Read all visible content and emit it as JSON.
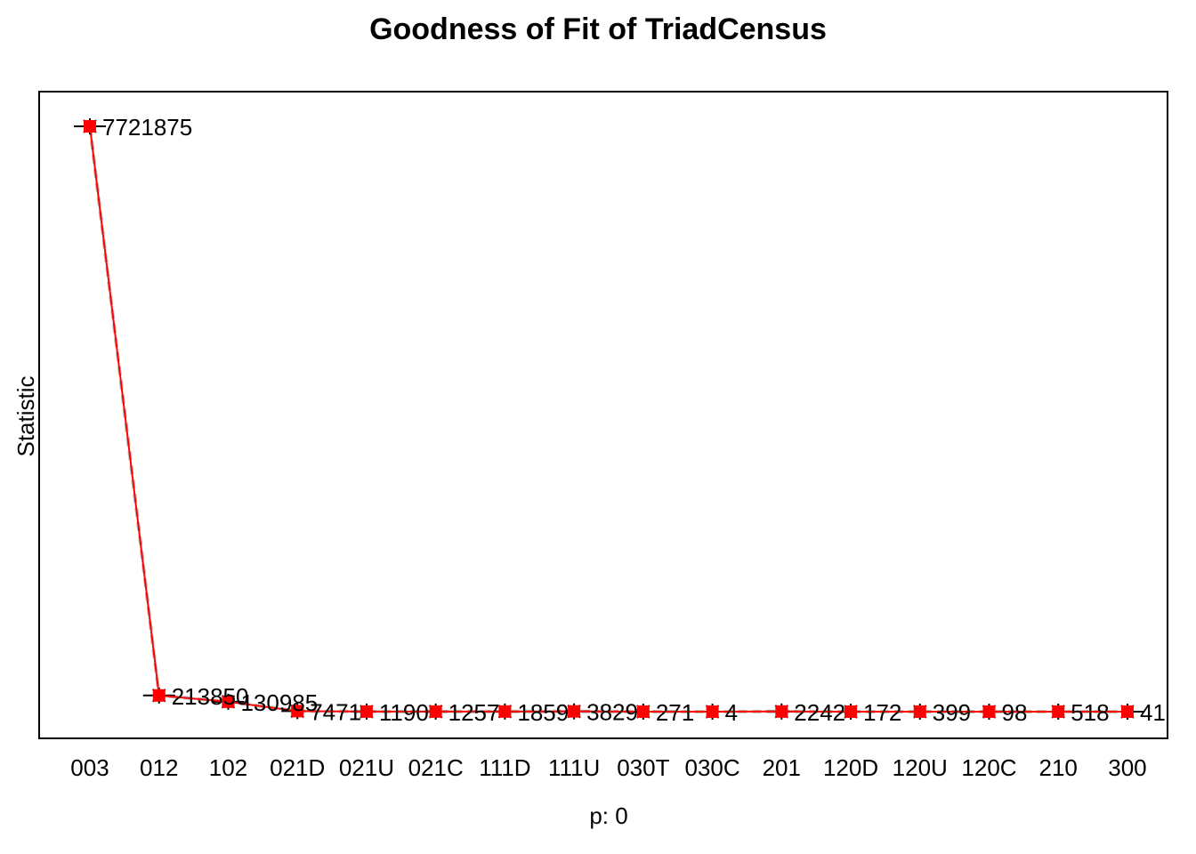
{
  "chart_data": {
    "type": "line",
    "title": "Goodness of Fit of TriadCensus",
    "xlabel": "p: 0",
    "ylabel": "Statistic",
    "categories": [
      "003",
      "012",
      "102",
      "021D",
      "021U",
      "021C",
      "111D",
      "111U",
      "030T",
      "030C",
      "201",
      "120D",
      "120U",
      "120C",
      "210",
      "300"
    ],
    "series": [
      {
        "values": [
          7721875,
          213850,
          130985,
          7471,
          1190,
          1257,
          1859,
          3829,
          271,
          4,
          2242,
          172,
          399,
          98,
          518,
          41
        ]
      }
    ],
    "data_labels": [
      "7721875",
      "213850",
      "130985",
      "7471",
      "1190",
      "1257",
      "1859",
      "3829",
      "271",
      "4",
      "2242",
      "172",
      "399",
      "98",
      "518",
      "41"
    ],
    "ylim": [
      0,
      7721875
    ],
    "grid": false,
    "legend": "none",
    "colors": {
      "line": "#FF0000",
      "marker": "#FF0000",
      "simulated": "#000000",
      "simulated_band": "#BEBEBE"
    }
  }
}
